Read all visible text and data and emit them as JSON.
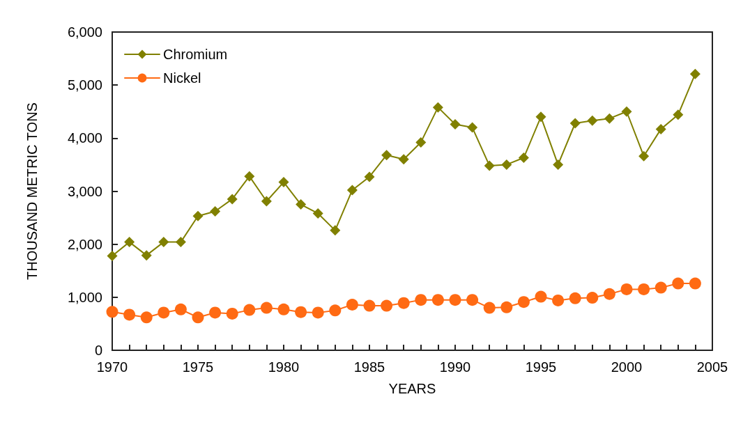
{
  "chart_data": {
    "type": "line",
    "xlabel": "YEARS",
    "ylabel": "THOUSAND METRIC TONS",
    "x": [
      1970,
      1971,
      1972,
      1973,
      1974,
      1975,
      1976,
      1977,
      1978,
      1979,
      1980,
      1981,
      1982,
      1983,
      1984,
      1985,
      1986,
      1987,
      1988,
      1989,
      1990,
      1991,
      1992,
      1993,
      1994,
      1995,
      1996,
      1997,
      1998,
      1999,
      2000,
      2001,
      2002,
      2003,
      2004
    ],
    "series": [
      {
        "name": "Chromium",
        "color": "#808000",
        "marker": "diamond",
        "values": [
          1780,
          2040,
          1790,
          2040,
          2040,
          2530,
          2620,
          2850,
          3280,
          2810,
          3170,
          2750,
          2580,
          2260,
          3020,
          3270,
          3680,
          3600,
          3920,
          4580,
          4260,
          4200,
          3480,
          3500,
          3630,
          4400,
          3500,
          4280,
          4330,
          4370,
          4500,
          3660,
          4170,
          4440,
          5210
        ]
      },
      {
        "name": "Nickel",
        "color": "#ff6a13",
        "marker": "circle",
        "values": [
          725,
          670,
          620,
          710,
          770,
          620,
          710,
          690,
          760,
          800,
          770,
          720,
          710,
          750,
          860,
          840,
          840,
          890,
          950,
          950,
          950,
          950,
          800,
          810,
          910,
          1010,
          940,
          980,
          990,
          1060,
          1150,
          1150,
          1180,
          1260,
          1260
        ]
      }
    ],
    "xlim": [
      1970,
      2005
    ],
    "xticks": [
      1970,
      {
        "value": 1971,
        "label": null
      },
      {
        "value": 1972,
        "label": null
      },
      {
        "value": 1973,
        "label": null
      },
      {
        "value": 1974,
        "label": null
      },
      1975,
      {
        "value": 1976,
        "label": null
      },
      {
        "value": 1977,
        "label": null
      },
      {
        "value": 1978,
        "label": null
      },
      {
        "value": 1979,
        "label": null
      },
      1980,
      {
        "value": 1981,
        "label": null
      },
      {
        "value": 1982,
        "label": null
      },
      {
        "value": 1983,
        "label": null
      },
      {
        "value": 1984,
        "label": null
      },
      1985,
      {
        "value": 1986,
        "label": null
      },
      {
        "value": 1987,
        "label": null
      },
      {
        "value": 1988,
        "label": null
      },
      {
        "value": 1989,
        "label": null
      },
      1990,
      {
        "value": 1991,
        "label": null
      },
      {
        "value": 1992,
        "label": null
      },
      {
        "value": 1993,
        "label": null
      },
      {
        "value": 1994,
        "label": null
      },
      1995,
      {
        "value": 1996,
        "label": null
      },
      {
        "value": 1997,
        "label": null
      },
      {
        "value": 1998,
        "label": null
      },
      {
        "value": 1999,
        "label": null
      },
      2000,
      {
        "value": 2001,
        "label": null
      },
      {
        "value": 2002,
        "label": null
      },
      {
        "value": 2003,
        "label": null
      },
      {
        "value": 2004,
        "label": null
      },
      2005
    ],
    "ylim": [
      0,
      6000
    ],
    "yticks": [
      0,
      {
        "value": 1000,
        "label": "1,000"
      },
      {
        "value": 2000,
        "label": "2,000"
      },
      {
        "value": 3000,
        "label": "3,000"
      },
      {
        "value": 4000,
        "label": "4,000"
      },
      {
        "value": 5000,
        "label": "5,000"
      },
      {
        "value": 6000,
        "label": "6,000"
      }
    ],
    "grid": false,
    "legend": "top left",
    "line_style": "solid"
  }
}
